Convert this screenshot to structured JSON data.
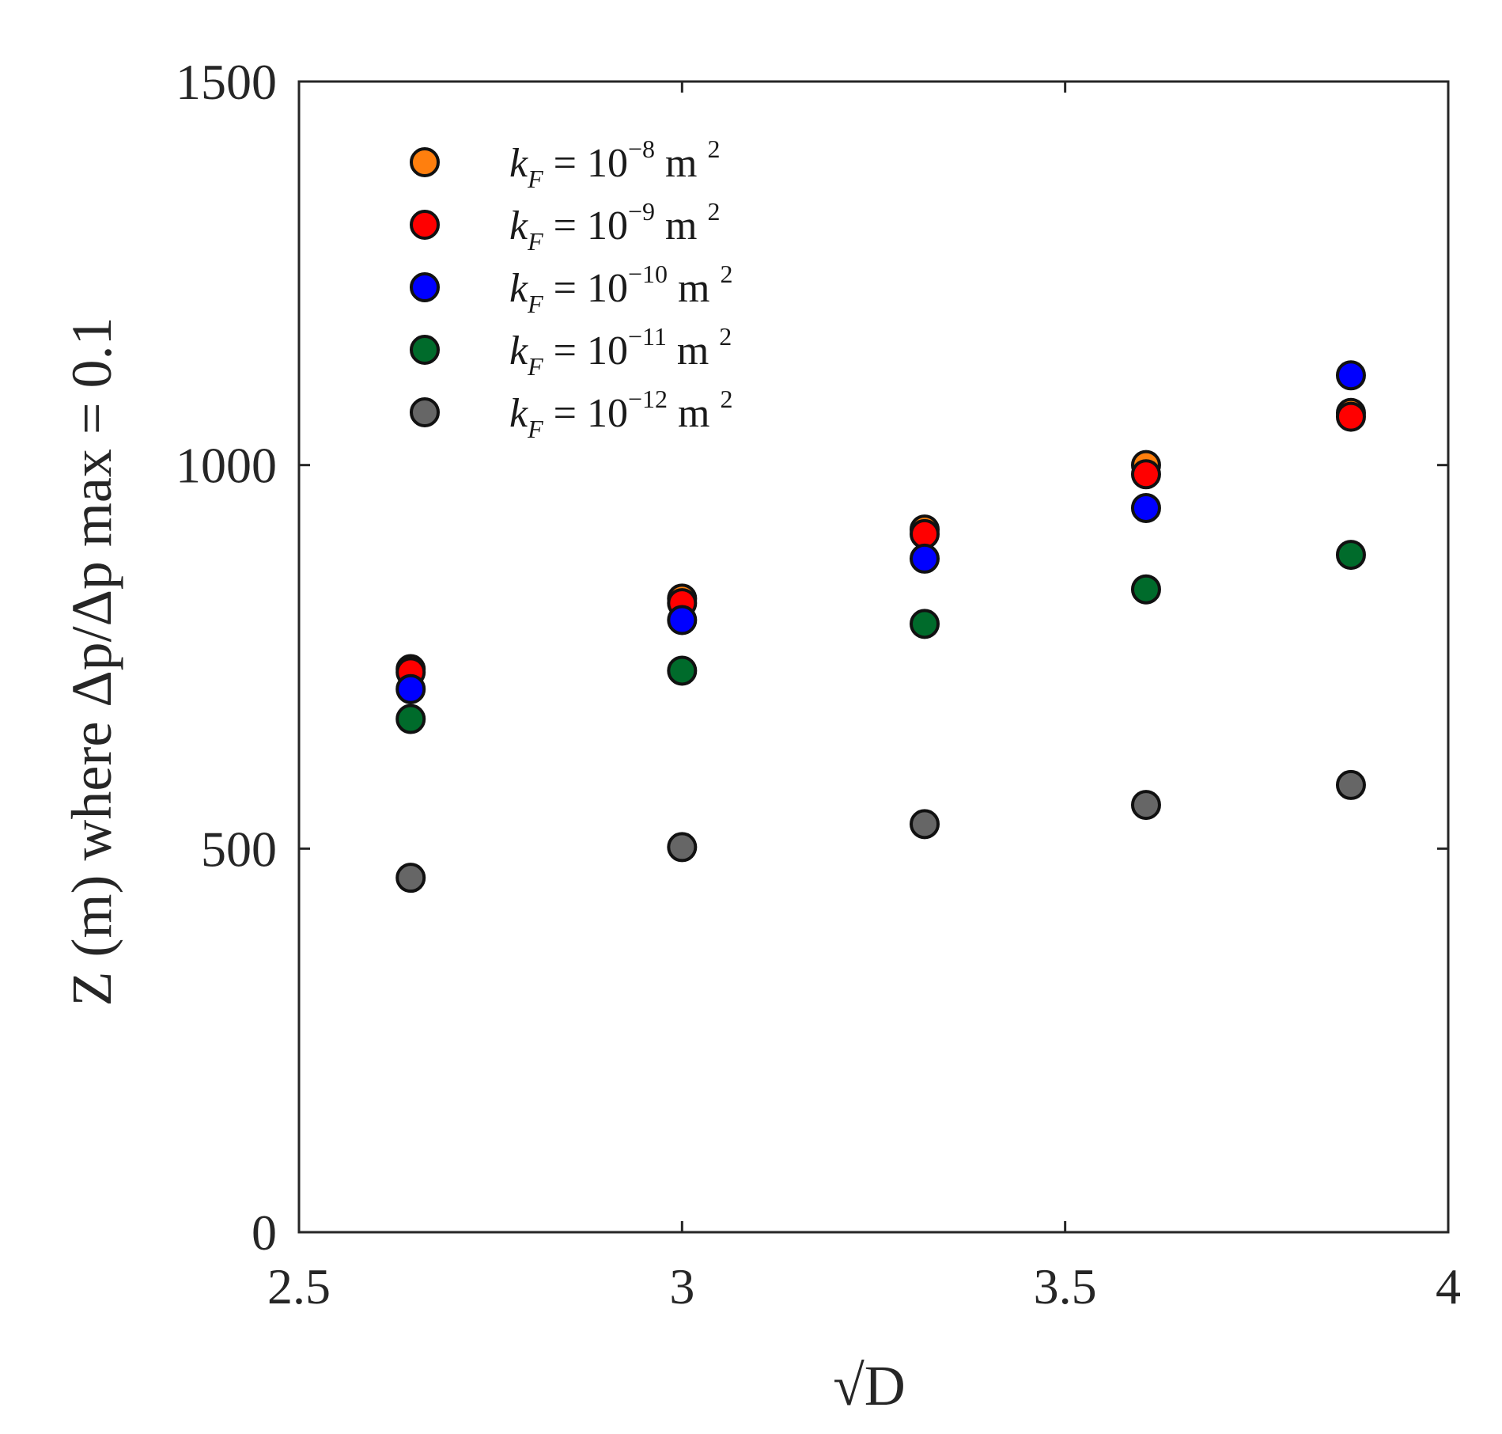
{
  "chart_data": {
    "type": "scatter",
    "xlabel": "√D",
    "ylabel": "Z (m) where Δp/Δp max = 0.1",
    "xlim": [
      2.5,
      4
    ],
    "ylim": [
      0,
      1500
    ],
    "xticks": [
      2.5,
      3,
      3.5,
      4
    ],
    "yticks": [
      0,
      500,
      1000,
      1500
    ],
    "xtick_labels": [
      "2.5",
      "3",
      "3.5",
      "4"
    ],
    "ytick_labels": [
      "0",
      "500",
      "1000",
      "1500"
    ],
    "grid": false,
    "legend_position": "top-left",
    "series": [
      {
        "name": "k_F = 10^-8 m^2",
        "legend": {
          "var": "k",
          "sub": "F",
          "eq": " = 10",
          "exp": "−8",
          "unit": " m ",
          "unit_exp": "2"
        },
        "color": "#ff7f0e",
        "x": [
          2.6458,
          3.0,
          3.3166,
          3.6056,
          3.873
        ],
        "y": [
          734,
          826,
          916,
          1000,
          1068
        ]
      },
      {
        "name": "k_F = 10^-9 m^2",
        "legend": {
          "var": "k",
          "sub": "F",
          "eq": " = 10",
          "exp": "−9",
          "unit": " m ",
          "unit_exp": "2"
        },
        "color": "#ff0000",
        "x": [
          2.6458,
          3.0,
          3.3166,
          3.6056,
          3.873
        ],
        "y": [
          730,
          820,
          910,
          988,
          1063
        ]
      },
      {
        "name": "k_F = 10^-10 m^2",
        "legend": {
          "var": "k",
          "sub": "F",
          "eq": " = 10",
          "exp": "−10",
          "unit": " m ",
          "unit_exp": "2"
        },
        "color": "#0000ff",
        "x": [
          2.6458,
          3.0,
          3.3166,
          3.6056,
          3.873
        ],
        "y": [
          708,
          798,
          878,
          944,
          1117
        ]
      },
      {
        "name": "k_F = 10^-11 m^2",
        "legend": {
          "var": "k",
          "sub": "F",
          "eq": " = 10",
          "exp": "−11",
          "unit": " m ",
          "unit_exp": "2"
        },
        "color": "#006b2b",
        "x": [
          2.6458,
          3.0,
          3.3166,
          3.6056,
          3.873
        ],
        "y": [
          669,
          732,
          793,
          838,
          883
        ]
      },
      {
        "name": "k_F = 10^-12 m^2",
        "legend": {
          "var": "k",
          "sub": "F",
          "eq": " = 10",
          "exp": "−12",
          "unit": " m ",
          "unit_exp": "2"
        },
        "color": "#666666",
        "x": [
          2.6458,
          3.0,
          3.3166,
          3.6056,
          3.873
        ],
        "y": [
          462,
          502,
          532,
          557,
          583
        ]
      }
    ]
  }
}
